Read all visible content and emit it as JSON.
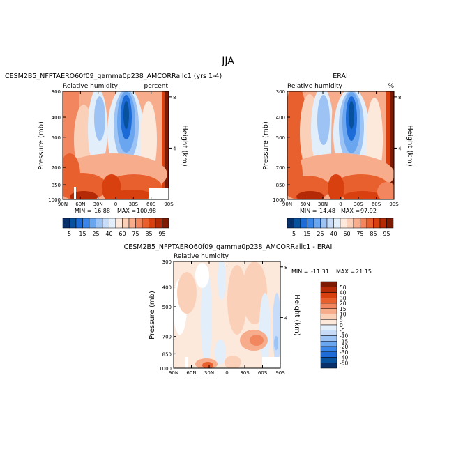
{
  "figure": {
    "title": "JJA"
  },
  "colors": {
    "blues": [
      "#08306b",
      "#08519c",
      "#1c6bd6",
      "#3a86e8",
      "#6aa5ef",
      "#9cc3f4",
      "#c6dcf8",
      "#e3eefb"
    ],
    "reds": [
      "#fde8dc",
      "#fbd0b8",
      "#f7ad8c",
      "#f2875f",
      "#e9602f",
      "#d9400f",
      "#b52a06",
      "#7e1a02"
    ]
  },
  "chart_data": [
    {
      "type": "heatmap",
      "plot_type": "latitude-pressure contour",
      "title": "CESM2B5_NFPTAERO60f09_gamma0p238_AMCORRallc1 (yrs 1-4)",
      "variable": "Relative humidity",
      "units": "percent",
      "xlabel": "",
      "ylabel": "Pressure (mb)",
      "y2label": "Height (km)",
      "x_ticks": [
        "90N",
        "60N",
        "30N",
        "0",
        "30S",
        "60S",
        "90S"
      ],
      "y_ticks": [
        "300",
        "400",
        "500",
        "700",
        "850",
        "1000"
      ],
      "y2_ticks": [
        "8",
        "4"
      ],
      "min_label": "MIN =",
      "min": "16.88",
      "max_label": "MAX =",
      "max": "100.98",
      "colorbar_labels": [
        "5",
        "15",
        "25",
        "40",
        "60",
        "75",
        "85",
        "95"
      ]
    },
    {
      "type": "heatmap",
      "plot_type": "latitude-pressure contour",
      "title": "ERAI",
      "variable": "Relative humidity",
      "units": "%",
      "xlabel": "",
      "ylabel": "Pressure (mb)",
      "y2label": "Height (km)",
      "x_ticks": [
        "90N",
        "60N",
        "30N",
        "0",
        "30S",
        "60S",
        "90S"
      ],
      "y_ticks": [
        "300",
        "400",
        "500",
        "700",
        "850",
        "1000"
      ],
      "y2_ticks": [
        "8",
        "4"
      ],
      "min_label": "MIN =",
      "min": "14.48",
      "max_label": "MAX =",
      "max": "97.92",
      "colorbar_labels": [
        "5",
        "15",
        "25",
        "40",
        "60",
        "75",
        "85",
        "95"
      ]
    },
    {
      "type": "heatmap",
      "plot_type": "latitude-pressure contour (difference)",
      "title": "CESM2B5_NFPTAERO60f09_gamma0p238_AMCORRallc1 - ERAI",
      "variable": "Relative humidity",
      "units": "",
      "xlabel": "",
      "ylabel": "Pressure (mb)",
      "y2label": "Height (km)",
      "x_ticks": [
        "90N",
        "60N",
        "30N",
        "0",
        "30S",
        "60S",
        "90S"
      ],
      "y_ticks": [
        "300",
        "400",
        "500",
        "700",
        "850",
        "1000"
      ],
      "y2_ticks": [
        "8",
        "4"
      ],
      "min_label": "MIN =",
      "min": "-11.31",
      "max_label": "MAX =",
      "max": "21.15",
      "colorbar_labels": [
        "50",
        "40",
        "30",
        "20",
        "15",
        "10",
        "5",
        "0",
        "-5",
        "-10",
        "-15",
        "-20",
        "-30",
        "-40",
        "-50"
      ]
    }
  ]
}
